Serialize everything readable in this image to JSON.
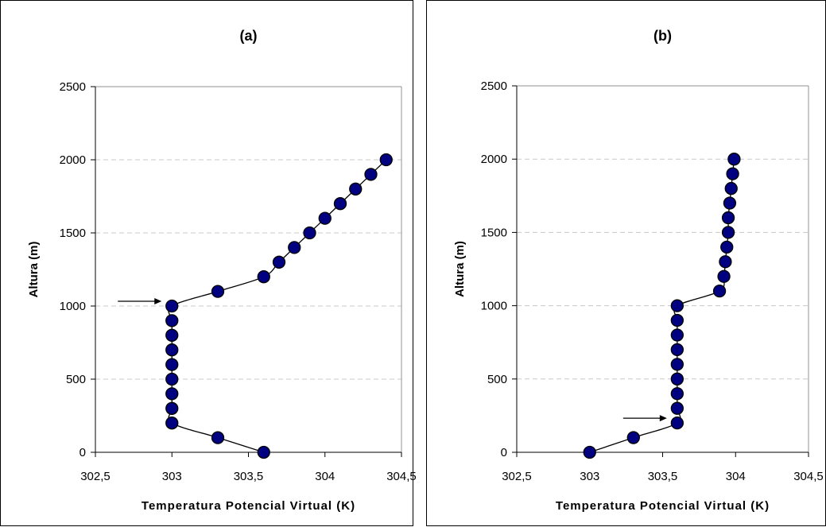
{
  "chart_data": [
    {
      "type": "line",
      "title": "(a)",
      "xlabel": "Temperatura Potencial Virtual (K)",
      "ylabel": "Altura (m)",
      "xlim": [
        302.5,
        304.5
      ],
      "ylim": [
        0,
        2500
      ],
      "xticks": [
        302.5,
        303,
        303.5,
        304,
        304.5
      ],
      "xtick_labels": [
        "302,5",
        "303",
        "303,5",
        "304",
        "304,5"
      ],
      "yticks": [
        0,
        500,
        1000,
        1500,
        2000,
        2500
      ],
      "ytick_labels": [
        "0",
        "500",
        "1000",
        "1500",
        "2000",
        "2500"
      ],
      "grid": "horizontal dashed",
      "marker_color": "#000080",
      "series": [
        {
          "x": [
            303.6,
            303.3,
            303.0,
            303.0,
            303.0,
            303.0,
            303.0,
            303.0,
            303.0,
            303.0,
            303.0,
            303.3,
            303.6,
            303.7,
            303.8,
            303.9,
            304.0,
            304.1,
            304.2,
            304.3,
            304.4
          ],
          "y": [
            0,
            100,
            200,
            300,
            400,
            500,
            600,
            700,
            800,
            900,
            1000,
            1100,
            1200,
            1300,
            1400,
            1500,
            1600,
            1700,
            1800,
            1900,
            2000
          ]
        }
      ],
      "annotation_arrow": {
        "x": 303.0,
        "y": 1000
      }
    },
    {
      "type": "line",
      "title": "(b)",
      "xlabel": "Temperatura Potencial Virtual (K)",
      "ylabel": "Altura (m)",
      "xlim": [
        302.5,
        304.5
      ],
      "ylim": [
        0,
        2500
      ],
      "xticks": [
        302.5,
        303,
        303.5,
        304,
        304.5
      ],
      "xtick_labels": [
        "302,5",
        "303",
        "303,5",
        "304",
        "304,5"
      ],
      "yticks": [
        0,
        500,
        1000,
        1500,
        2000,
        2500
      ],
      "ytick_labels": [
        "0",
        "500",
        "1000",
        "1500",
        "2000",
        "2500"
      ],
      "grid": "horizontal dashed",
      "marker_color": "#000080",
      "series": [
        {
          "x": [
            303.0,
            303.3,
            303.6,
            303.6,
            303.6,
            303.6,
            303.6,
            303.6,
            303.6,
            303.6,
            303.6,
            303.89,
            303.92,
            303.93,
            303.94,
            303.95,
            303.95,
            303.96,
            303.97,
            303.98,
            303.99
          ],
          "y": [
            0,
            100,
            200,
            300,
            400,
            500,
            600,
            700,
            800,
            900,
            1000,
            1100,
            1200,
            1300,
            1400,
            1500,
            1600,
            1700,
            1800,
            1900,
            2000
          ]
        }
      ],
      "annotation_arrow": {
        "x": 303.6,
        "y": 200
      }
    }
  ]
}
